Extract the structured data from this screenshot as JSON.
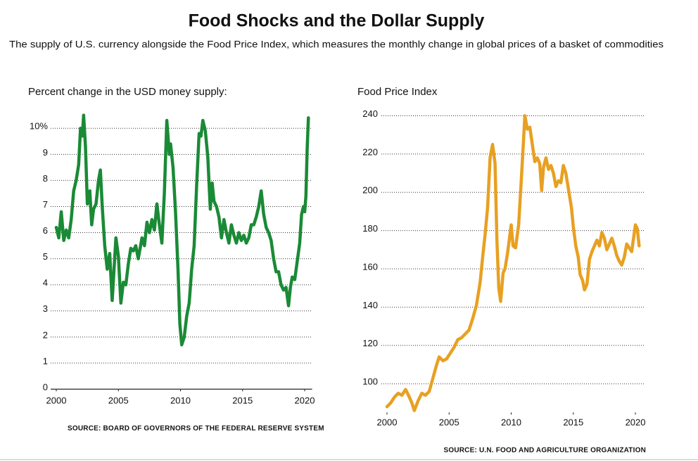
{
  "title": "Food Shocks and the Dollar Supply",
  "subtitle": "The supply of U.S. currency alongside the Food Price Index, which measures the monthly change in global prices of a basket of commodities",
  "chart_data": [
    {
      "type": "line",
      "axis_title": "Percent change in the USD money supply:",
      "source": "SOURCE: BOARD OF GOVERNORS OF THE FEDERAL RESERVE SYSTEM",
      "xlim": [
        2000,
        2020.6
      ],
      "xticks": [
        2000,
        2005,
        2010,
        2015,
        2020
      ],
      "ylim": [
        0,
        10.6
      ],
      "yticks": [
        0,
        1,
        2,
        3,
        4,
        5,
        6,
        7,
        8,
        9,
        {
          "value": 10,
          "label": "10%"
        }
      ],
      "grid": true,
      "series": [
        {
          "color": "#1a8a36",
          "x": [
            2000.0,
            2000.2,
            2000.4,
            2000.6,
            2000.8,
            2001.0,
            2001.2,
            2001.4,
            2001.6,
            2001.8,
            2001.95,
            2002.1,
            2002.2,
            2002.35,
            2002.5,
            2002.7,
            2002.85,
            2003.0,
            2003.2,
            2003.4,
            2003.55,
            2003.7,
            2003.9,
            2004.1,
            2004.3,
            2004.5,
            2004.7,
            2004.8,
            2005.0,
            2005.2,
            2005.4,
            2005.6,
            2005.8,
            2006.0,
            2006.2,
            2006.4,
            2006.6,
            2006.9,
            2007.1,
            2007.3,
            2007.5,
            2007.7,
            2007.9,
            2008.1,
            2008.3,
            2008.5,
            2008.7,
            2008.9,
            2009.1,
            2009.2,
            2009.4,
            2009.6,
            2009.8,
            2009.95,
            2010.1,
            2010.3,
            2010.5,
            2010.7,
            2010.9,
            2011.1,
            2011.3,
            2011.5,
            2011.65,
            2011.8,
            2012.0,
            2012.2,
            2012.4,
            2012.55,
            2012.7,
            2012.9,
            2013.1,
            2013.3,
            2013.5,
            2013.7,
            2013.9,
            2014.1,
            2014.3,
            2014.5,
            2014.7,
            2014.9,
            2015.1,
            2015.3,
            2015.5,
            2015.7,
            2015.9,
            2016.1,
            2016.3,
            2016.5,
            2016.7,
            2016.9,
            2017.1,
            2017.3,
            2017.5,
            2017.7,
            2017.9,
            2018.1,
            2018.3,
            2018.5,
            2018.7,
            2018.85,
            2019.0,
            2019.2,
            2019.4,
            2019.6,
            2019.75,
            2019.9,
            2020.0,
            2020.1,
            2020.2,
            2020.3
          ],
          "values": [
            6.2,
            5.8,
            6.8,
            5.7,
            6.1,
            5.8,
            6.5,
            7.6,
            8.0,
            8.6,
            10.0,
            9.7,
            10.5,
            9.3,
            7.1,
            7.6,
            6.3,
            6.9,
            7.1,
            8.0,
            8.4,
            7.0,
            5.5,
            4.6,
            5.2,
            3.4,
            5.0,
            5.8,
            5.1,
            3.3,
            4.1,
            4.0,
            4.8,
            5.4,
            5.3,
            5.5,
            5.0,
            5.8,
            5.5,
            6.4,
            6.0,
            6.5,
            6.1,
            7.1,
            6.3,
            5.6,
            7.5,
            10.3,
            9.0,
            9.4,
            8.5,
            6.8,
            4.6,
            2.5,
            1.7,
            2.0,
            2.8,
            3.3,
            4.6,
            5.5,
            7.8,
            9.8,
            9.7,
            10.3,
            9.9,
            8.9,
            6.9,
            7.9,
            7.2,
            7.0,
            6.6,
            5.8,
            6.5,
            6.0,
            5.6,
            6.3,
            5.9,
            5.6,
            6.0,
            5.7,
            5.9,
            5.6,
            5.8,
            6.3,
            6.3,
            6.6,
            7.0,
            7.6,
            6.7,
            6.2,
            6.0,
            5.7,
            5.0,
            4.5,
            4.5,
            4.0,
            3.8,
            3.9,
            3.2,
            3.9,
            4.3,
            4.2,
            4.9,
            5.6,
            6.7,
            7.0,
            6.8,
            7.4,
            9.2,
            10.4
          ]
        }
      ]
    },
    {
      "type": "line",
      "axis_title": "Food Price Index",
      "source": "SOURCE: U.N. FOOD AND AGRICULTURE ORGANIZATION",
      "xlim": [
        2000,
        2020.7
      ],
      "xticks": [
        2000,
        2005,
        2010,
        2015,
        2020
      ],
      "ylim": [
        85,
        242
      ],
      "yticks": [
        100,
        120,
        140,
        160,
        180,
        200,
        220,
        240
      ],
      "grid": true,
      "series": [
        {
          "color": "#e8a022",
          "x": [
            2000.0,
            2000.3,
            2000.6,
            2000.9,
            2001.2,
            2001.5,
            2001.8,
            2002.0,
            2002.2,
            2002.5,
            2002.8,
            2003.1,
            2003.4,
            2003.7,
            2004.0,
            2004.2,
            2004.5,
            2004.8,
            2005.1,
            2005.4,
            2005.7,
            2006.0,
            2006.3,
            2006.6,
            2006.9,
            2007.2,
            2007.5,
            2007.7,
            2007.9,
            2008.1,
            2008.3,
            2008.5,
            2008.7,
            2008.85,
            2009.0,
            2009.15,
            2009.35,
            2009.5,
            2009.7,
            2009.9,
            2010.0,
            2010.15,
            2010.35,
            2010.6,
            2010.8,
            2011.0,
            2011.1,
            2011.3,
            2011.5,
            2011.7,
            2011.9,
            2012.1,
            2012.3,
            2012.45,
            2012.6,
            2012.8,
            2013.0,
            2013.2,
            2013.4,
            2013.6,
            2013.8,
            2014.0,
            2014.2,
            2014.4,
            2014.6,
            2014.85,
            2015.0,
            2015.2,
            2015.4,
            2015.55,
            2015.75,
            2015.9,
            2016.1,
            2016.3,
            2016.5,
            2016.7,
            2016.9,
            2017.1,
            2017.3,
            2017.5,
            2017.7,
            2017.9,
            2018.1,
            2018.3,
            2018.5,
            2018.7,
            2018.9,
            2019.1,
            2019.3,
            2019.5,
            2019.7,
            2019.85,
            2020.0,
            2020.15,
            2020.3
          ],
          "values": [
            88,
            90,
            93,
            95,
            94,
            97,
            93,
            90,
            86,
            91,
            95,
            94,
            96,
            103,
            110,
            114,
            112,
            113,
            116,
            119,
            123,
            124,
            126,
            128,
            134,
            141,
            153,
            166,
            178,
            192,
            218,
            225,
            215,
            175,
            150,
            143,
            158,
            160,
            168,
            178,
            183,
            172,
            171,
            183,
            205,
            228,
            240,
            233,
            234,
            225,
            216,
            218,
            215,
            201,
            213,
            218,
            212,
            214,
            210,
            203,
            206,
            205,
            214,
            210,
            202,
            192,
            182,
            172,
            166,
            157,
            154,
            149,
            152,
            165,
            169,
            172,
            175,
            172,
            179,
            176,
            170,
            173,
            176,
            172,
            167,
            164,
            162,
            166,
            173,
            171,
            169,
            176,
            183,
            181,
            172
          ]
        }
      ]
    }
  ]
}
